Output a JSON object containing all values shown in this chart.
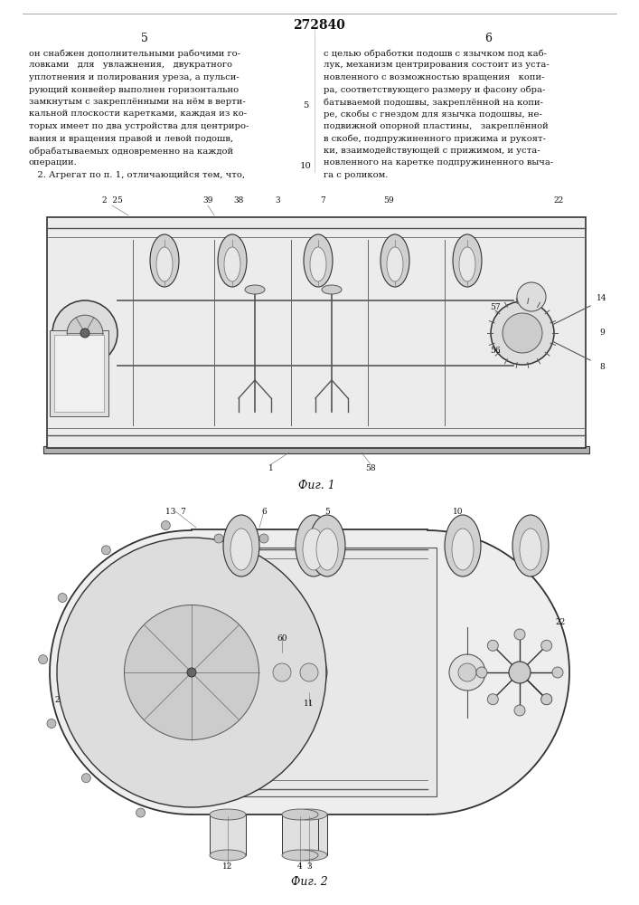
{
  "patent_number": "272840",
  "page_left": "5",
  "page_right": "6",
  "text_left_lines": [
    "он снабжен дополнительными рабочими го-",
    "ловками   для   увлажнения,   двукратного",
    "уплотнения и полирования уреза, а пульси-",
    "рующий конвейер выполнен горизонтально",
    "замкнутым с закреплёнными на нём в верти-",
    "кальной плоскости каретками, каждая из ко-",
    "торых имеет по два устройства для центриро-",
    "вания и вращения правой и левой подошв,",
    "обрабатываемых одновременно на каждой",
    "операции."
  ],
  "text_claim2": "   2. Агрегат по п. 1, отличающийся тем, что,",
  "text_right_lines": [
    "с целью обработки подошв с язычком под каб-",
    "лук, механизм центрирования состоит из уста-",
    "новленного с возможностью вращения   копи-",
    "ра, соответствующего размеру и фасону обра-",
    "батываемой подошвы, закреплённой на копи-",
    "ре, скобы с гнездом для язычка подошвы, не-",
    "подвижной опорной пластины,   закреплённой",
    "в скобе, подпружиненного прижима и рукоят-",
    "ки, взаимодействующей с прижимом, и уста-",
    "новленного на каретке подпружиненного выча-",
    "га с роликом."
  ],
  "line_num_5": "5",
  "line_num_10": "10",
  "fig1_caption": "Фиг. 1",
  "fig2_caption": "Фиг. 2",
  "bg_color": "#ffffff",
  "text_color": "#111111",
  "draw_color": "#333333"
}
